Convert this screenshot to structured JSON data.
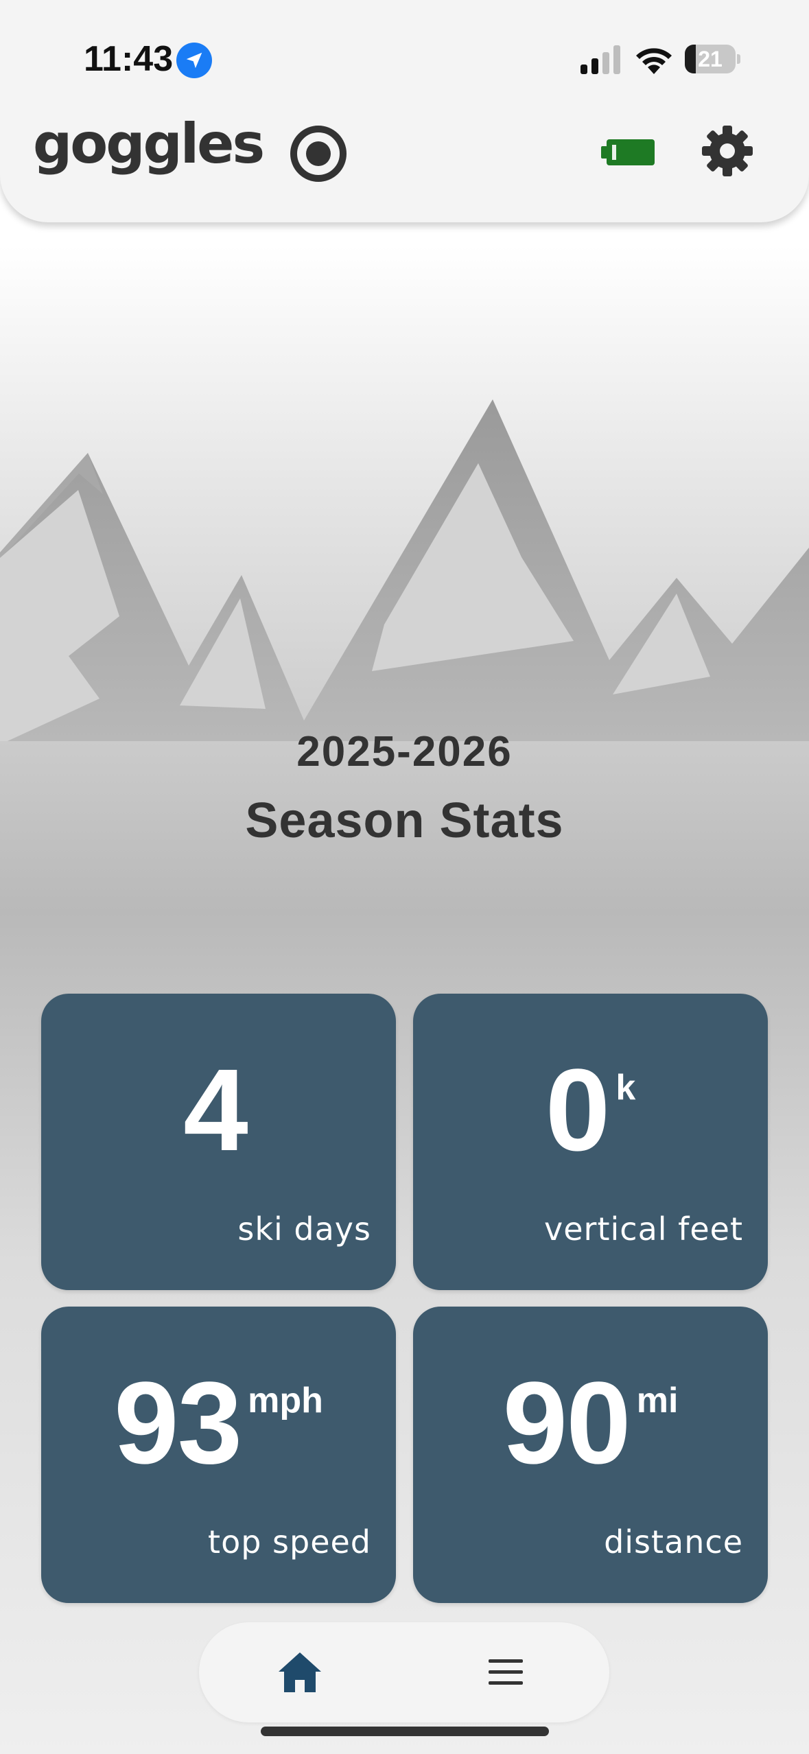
{
  "status_bar": {
    "time": "11:43",
    "battery_percent": "21",
    "battery_level": 0.21,
    "icons": [
      "location-arrow-icon",
      "cellular-signal-icon",
      "wifi-icon",
      "battery-icon"
    ]
  },
  "header": {
    "app_title": "goggles",
    "icons": [
      "record-icon",
      "device-battery-icon",
      "gear-icon"
    ],
    "device_battery_color": "#1e7a24"
  },
  "season": {
    "year": "2025-2026",
    "title": "Season Stats"
  },
  "stats": [
    {
      "value": "4",
      "unit": "",
      "label": "ski days"
    },
    {
      "value": "0",
      "unit": "k",
      "label": "vertical feet"
    },
    {
      "value": "93",
      "unit": "mph",
      "label": "top speed"
    },
    {
      "value": "90",
      "unit": "mi",
      "label": "distance"
    }
  ],
  "bottom_nav": {
    "items": [
      "home-icon",
      "menu-icon"
    ],
    "active": "home-icon"
  },
  "colors": {
    "card_bg": "#3e5a6d",
    "accent_blue": "#1f4a6b",
    "location_blue": "#1a7cf5"
  }
}
